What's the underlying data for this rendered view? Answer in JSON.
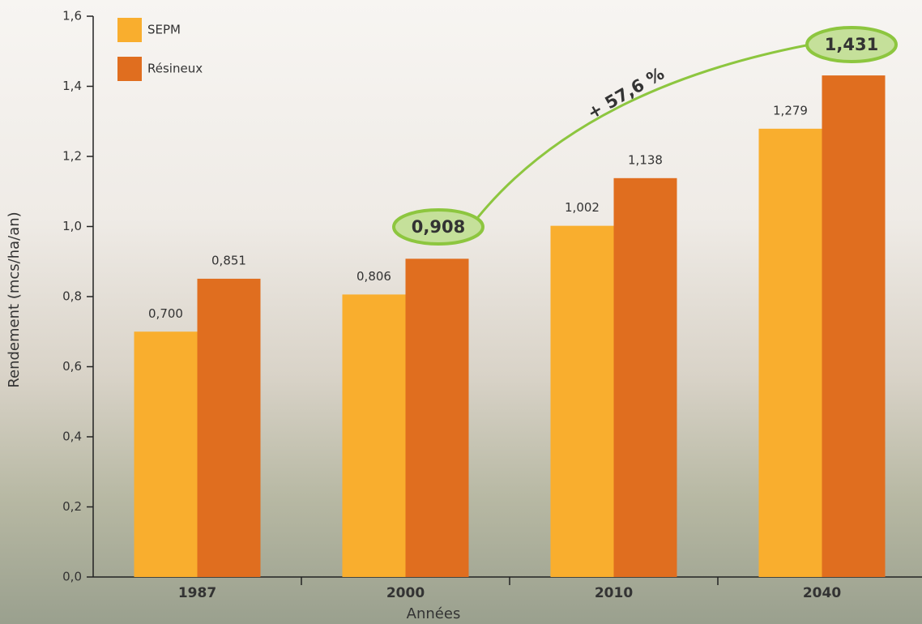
{
  "chart_data": {
    "type": "bar",
    "y_label": "Rendement (mcs/ha/an)",
    "x_label": "Années",
    "categories": [
      "1987",
      "2000",
      "2010",
      "2040"
    ],
    "series": [
      {
        "name": "SEPM",
        "color": "#f9ae2e",
        "values": [
          0.7,
          0.806,
          1.002,
          1.279
        ],
        "value_labels": [
          "0,700",
          "0,806",
          "1,002",
          "1,279"
        ]
      },
      {
        "name": "Résineux",
        "color": "#e06e1f",
        "values": [
          0.851,
          0.908,
          1.138,
          1.431
        ],
        "value_labels": [
          "0,851",
          null,
          "1,138",
          null
        ]
      }
    ],
    "ylim": [
      0,
      1.6
    ],
    "yticks": [
      {
        "value": 0,
        "label": "0,0"
      },
      {
        "value": 0.2,
        "label": "0,2"
      },
      {
        "value": 0.4,
        "label": "0,4"
      },
      {
        "value": 0.6,
        "label": "0,6"
      },
      {
        "value": 0.8,
        "label": "0,8"
      },
      {
        "value": 1.0,
        "label": "1,0"
      },
      {
        "value": 1.2,
        "label": "1,2"
      },
      {
        "value": 1.4,
        "label": "1,4"
      },
      {
        "value": 1.6,
        "label": "1,6"
      }
    ],
    "annotations": [
      {
        "text": "0,908"
      },
      {
        "text": "1,431"
      },
      {
        "text": "+ 57,6 %"
      }
    ]
  }
}
